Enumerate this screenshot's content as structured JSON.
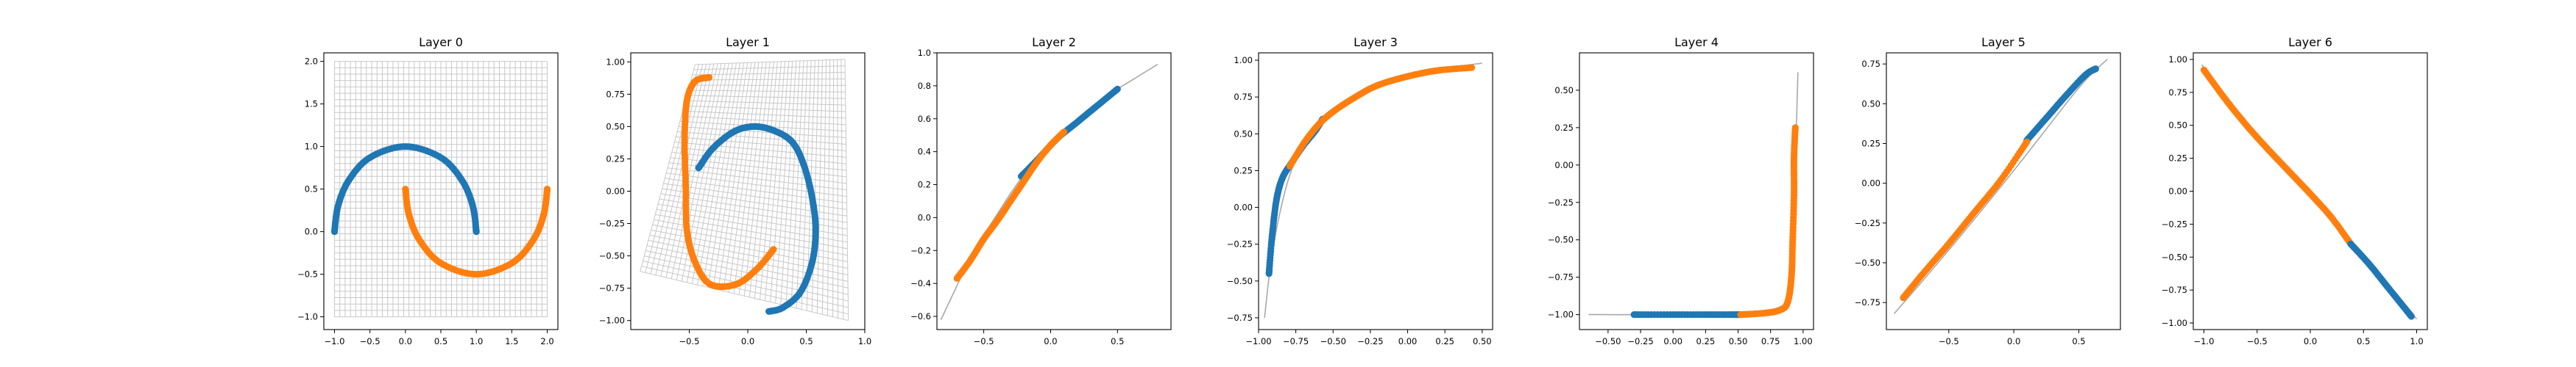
{
  "colors": {
    "blue": "#1f77b4",
    "orange": "#ff7f0e",
    "grid": "#c8c8c8",
    "line": "#a8a8a8"
  },
  "chart_data": [
    {
      "type": "scatter",
      "title": "Layer 0",
      "xlim": [
        -1.15,
        2.15
      ],
      "ylim": [
        -1.15,
        2.1
      ],
      "xticks": [
        -1.0,
        -0.5,
        0.0,
        0.5,
        1.0,
        1.5,
        2.0
      ],
      "yticks": [
        -1.0,
        -0.5,
        0.0,
        0.5,
        1.0,
        1.5,
        2.0
      ],
      "xticklabels": [
        "−1.0",
        "−0.5",
        "0.0",
        "0.5",
        "1.0",
        "1.5",
        "2.0"
      ],
      "yticklabels": [
        "−1.0",
        "−0.5",
        "0.0",
        "0.5",
        "1.0",
        "1.5",
        "2.0"
      ],
      "grid_mesh": {
        "xmin": -1.0,
        "xmax": 2.0,
        "ymin": -1.0,
        "ymax": 2.0,
        "lines": 40
      },
      "series": [
        {
          "color": "blue",
          "points": [
            [
              -1.0,
              0.0
            ],
            [
              -0.95,
              0.3
            ],
            [
              -0.8,
              0.6
            ],
            [
              -0.5,
              0.87
            ],
            [
              0.0,
              1.0
            ],
            [
              0.5,
              0.87
            ],
            [
              0.8,
              0.6
            ],
            [
              0.95,
              0.3
            ],
            [
              1.0,
              0.0
            ]
          ]
        },
        {
          "color": "orange",
          "points": [
            [
              0.0,
              0.5
            ],
            [
              0.05,
              0.2
            ],
            [
              0.2,
              -0.1
            ],
            [
              0.5,
              -0.37
            ],
            [
              1.0,
              -0.5
            ],
            [
              1.5,
              -0.37
            ],
            [
              1.8,
              -0.1
            ],
            [
              1.95,
              0.2
            ],
            [
              2.0,
              0.5
            ]
          ]
        }
      ]
    },
    {
      "type": "scatter",
      "title": "Layer 1",
      "xlim": [
        -1.0,
        1.0
      ],
      "ylim": [
        -1.07,
        1.07
      ],
      "xticks": [
        -0.5,
        0.0,
        0.5,
        1.0
      ],
      "yticks": [
        -1.0,
        -0.75,
        -0.5,
        -0.25,
        0.0,
        0.25,
        0.5,
        0.75,
        1.0
      ],
      "xticklabels": [
        "−0.5",
        "0.0",
        "0.5",
        "1.0"
      ],
      "yticklabels": [
        "−1.00",
        "−0.75",
        "−0.50",
        "−0.25",
        "0.00",
        "0.25",
        "0.50",
        "0.75",
        "1.00"
      ],
      "warp_mesh": {
        "corners": [
          [
            -0.92,
            -0.62
          ],
          [
            0.86,
            -1.0
          ],
          [
            0.83,
            1.02
          ],
          [
            -0.45,
            0.98
          ]
        ],
        "lines": 40
      },
      "series": [
        {
          "color": "blue",
          "points": [
            [
              -0.42,
              0.18
            ],
            [
              -0.3,
              0.33
            ],
            [
              -0.12,
              0.46
            ],
            [
              0.05,
              0.5
            ],
            [
              0.22,
              0.47
            ],
            [
              0.38,
              0.38
            ],
            [
              0.48,
              0.2
            ],
            [
              0.55,
              -0.05
            ],
            [
              0.58,
              -0.3
            ],
            [
              0.55,
              -0.55
            ],
            [
              0.45,
              -0.78
            ],
            [
              0.3,
              -0.9
            ],
            [
              0.18,
              -0.93
            ]
          ]
        },
        {
          "color": "orange",
          "points": [
            [
              -0.33,
              0.88
            ],
            [
              -0.45,
              0.85
            ],
            [
              -0.52,
              0.7
            ],
            [
              -0.54,
              0.4
            ],
            [
              -0.53,
              0.05
            ],
            [
              -0.52,
              -0.3
            ],
            [
              -0.45,
              -0.55
            ],
            [
              -0.32,
              -0.72
            ],
            [
              -0.1,
              -0.72
            ],
            [
              0.08,
              -0.6
            ],
            [
              0.22,
              -0.45
            ]
          ]
        }
      ]
    },
    {
      "type": "line",
      "title": "Layer 2",
      "xlim": [
        -0.85,
        0.9
      ],
      "ylim": [
        -0.68,
        1.0
      ],
      "xticks": [
        -0.5,
        0.0,
        0.5
      ],
      "yticks": [
        -0.6,
        -0.4,
        -0.2,
        0.0,
        0.2,
        0.4,
        0.6,
        0.8,
        1.0
      ],
      "xticklabels": [
        "−0.5",
        "0.0",
        "0.5"
      ],
      "yticklabels": [
        "−0.6",
        "−0.4",
        "−0.2",
        "0.0",
        "0.2",
        "0.4",
        "0.6",
        "0.8",
        "1.0"
      ],
      "line": [
        [
          -0.82,
          -0.62
        ],
        [
          -0.6,
          -0.25
        ],
        [
          -0.4,
          0.02
        ],
        [
          -0.2,
          0.26
        ],
        [
          0.0,
          0.44
        ],
        [
          0.2,
          0.6
        ],
        [
          0.4,
          0.73
        ],
        [
          0.6,
          0.83
        ],
        [
          0.8,
          0.93
        ]
      ],
      "series": [
        {
          "color": "blue",
          "points": [
            [
              -0.22,
              0.25
            ],
            [
              -0.1,
              0.35
            ],
            [
              0.05,
              0.48
            ],
            [
              0.2,
              0.58
            ],
            [
              0.35,
              0.68
            ],
            [
              0.5,
              0.78
            ]
          ]
        },
        {
          "color": "orange",
          "points": [
            [
              -0.7,
              -0.37
            ],
            [
              -0.6,
              -0.26
            ],
            [
              -0.5,
              -0.13
            ],
            [
              -0.4,
              -0.02
            ],
            [
              -0.3,
              0.1
            ],
            [
              -0.2,
              0.22
            ],
            [
              -0.1,
              0.34
            ],
            [
              0.0,
              0.44
            ],
            [
              0.1,
              0.52
            ]
          ]
        }
      ]
    },
    {
      "type": "line",
      "title": "Layer 3",
      "xlim": [
        -1.0,
        0.57
      ],
      "ylim": [
        -0.83,
        1.05
      ],
      "xticks": [
        -1.0,
        -0.75,
        -0.5,
        -0.25,
        0.0,
        0.25,
        0.5
      ],
      "yticks": [
        -0.75,
        -0.5,
        -0.25,
        0.0,
        0.25,
        0.5,
        0.75,
        1.0
      ],
      "xticklabels": [
        "−1.00",
        "−0.75",
        "−0.50",
        "−0.25",
        "0.00",
        "0.25",
        "0.50"
      ],
      "yticklabels": [
        "−0.75",
        "−0.50",
        "−0.25",
        "0.00",
        "0.25",
        "0.50",
        "0.75",
        "1.00"
      ],
      "line": [
        [
          -0.96,
          -0.75
        ],
        [
          -0.92,
          -0.4
        ],
        [
          -0.86,
          -0.05
        ],
        [
          -0.78,
          0.25
        ],
        [
          -0.68,
          0.45
        ],
        [
          -0.55,
          0.62
        ],
        [
          -0.4,
          0.74
        ],
        [
          -0.2,
          0.84
        ],
        [
          0.0,
          0.9
        ],
        [
          0.2,
          0.94
        ],
        [
          0.5,
          0.98
        ]
      ],
      "series": [
        {
          "color": "blue",
          "points": [
            [
              -0.93,
              -0.45
            ],
            [
              -0.91,
              -0.2
            ],
            [
              -0.88,
              0.05
            ],
            [
              -0.84,
              0.2
            ],
            [
              -0.78,
              0.3
            ],
            [
              -0.7,
              0.42
            ],
            [
              -0.62,
              0.52
            ],
            [
              -0.57,
              0.6
            ]
          ]
        },
        {
          "color": "orange",
          "points": [
            [
              -0.79,
              0.28
            ],
            [
              -0.7,
              0.43
            ],
            [
              -0.6,
              0.56
            ],
            [
              -0.5,
              0.65
            ],
            [
              -0.35,
              0.75
            ],
            [
              -0.2,
              0.83
            ],
            [
              0.0,
              0.89
            ],
            [
              0.2,
              0.93
            ],
            [
              0.43,
              0.95
            ]
          ]
        }
      ]
    },
    {
      "type": "line",
      "title": "Layer 4",
      "xlim": [
        -0.72,
        1.08
      ],
      "ylim": [
        -1.1,
        0.75
      ],
      "xticks": [
        -0.5,
        -0.25,
        0.0,
        0.25,
        0.5,
        0.75,
        1.0
      ],
      "yticks": [
        -1.0,
        -0.75,
        -0.5,
        -0.25,
        0.0,
        0.25,
        0.5
      ],
      "xticklabels": [
        "−0.50",
        "−0.25",
        "0.00",
        "0.25",
        "0.50",
        "0.75",
        "1.00"
      ],
      "yticklabels": [
        "−1.00",
        "−0.75",
        "−0.50",
        "−0.25",
        "0.00",
        "0.25",
        "0.50"
      ],
      "line": [
        [
          -0.65,
          -1.0
        ],
        [
          0.5,
          -1.0
        ],
        [
          0.75,
          -0.99
        ],
        [
          0.85,
          -0.97
        ],
        [
          0.9,
          -0.9
        ],
        [
          0.93,
          -0.6
        ],
        [
          0.94,
          -0.1
        ],
        [
          0.95,
          0.3
        ],
        [
          0.96,
          0.62
        ]
      ],
      "series": [
        {
          "color": "blue",
          "points": [
            [
              -0.3,
              -1.0
            ],
            [
              0.0,
              -1.0
            ],
            [
              0.3,
              -1.0
            ],
            [
              0.52,
              -1.0
            ]
          ]
        },
        {
          "color": "orange",
          "points": [
            [
              0.52,
              -1.0
            ],
            [
              0.7,
              -0.99
            ],
            [
              0.82,
              -0.97
            ],
            [
              0.88,
              -0.92
            ],
            [
              0.91,
              -0.75
            ],
            [
              0.92,
              -0.5
            ],
            [
              0.93,
              -0.2
            ],
            [
              0.93,
              0.05
            ],
            [
              0.94,
              0.25
            ]
          ]
        }
      ]
    },
    {
      "type": "line",
      "title": "Layer 5",
      "xlim": [
        -0.98,
        0.82
      ],
      "ylim": [
        -0.92,
        0.82
      ],
      "xticks": [
        -0.5,
        0.0,
        0.5
      ],
      "yticks": [
        -0.75,
        -0.5,
        -0.25,
        0.0,
        0.25,
        0.5,
        0.75
      ],
      "xticklabels": [
        "−0.5",
        "0.0",
        "0.5"
      ],
      "yticklabels": [
        "−0.75",
        "−0.50",
        "−0.25",
        "0.00",
        "0.25",
        "0.50",
        "0.75"
      ],
      "line": [
        [
          -0.92,
          -0.82
        ],
        [
          -0.5,
          -0.42
        ],
        [
          0.0,
          0.08
        ],
        [
          0.5,
          0.6
        ],
        [
          0.72,
          0.78
        ]
      ],
      "series": [
        {
          "color": "blue",
          "points": [
            [
              0.1,
              0.27
            ],
            [
              0.25,
              0.41
            ],
            [
              0.4,
              0.55
            ],
            [
              0.55,
              0.68
            ],
            [
              0.63,
              0.72
            ]
          ]
        },
        {
          "color": "orange",
          "points": [
            [
              -0.85,
              -0.72
            ],
            [
              -0.7,
              -0.57
            ],
            [
              -0.5,
              -0.38
            ],
            [
              -0.3,
              -0.18
            ],
            [
              -0.1,
              0.02
            ],
            [
              0.1,
              0.26
            ]
          ]
        }
      ]
    },
    {
      "type": "line",
      "title": "Layer 6",
      "xlim": [
        -1.1,
        1.1
      ],
      "ylim": [
        -1.05,
        1.05
      ],
      "xticks": [
        -1.0,
        -0.5,
        0.0,
        0.5,
        1.0
      ],
      "yticks": [
        -1.0,
        -0.75,
        -0.5,
        -0.25,
        0.0,
        0.25,
        0.5,
        0.75,
        1.0
      ],
      "xticklabels": [
        "−1.0",
        "−0.5",
        "0.0",
        "0.5",
        "1.0"
      ],
      "yticklabels": [
        "−1.00",
        "−0.75",
        "−0.50",
        "−0.25",
        "0.00",
        "0.25",
        "0.50",
        "0.75",
        "1.00"
      ],
      "line": [
        [
          -1.02,
          0.96
        ],
        [
          -0.5,
          0.43
        ],
        [
          0.0,
          0.0
        ],
        [
          0.5,
          -0.5
        ],
        [
          1.0,
          -0.97
        ]
      ],
      "series": [
        {
          "color": "orange",
          "points": [
            [
              -1.0,
              0.92
            ],
            [
              -0.8,
              0.7
            ],
            [
              -0.6,
              0.5
            ],
            [
              -0.4,
              0.32
            ],
            [
              -0.2,
              0.15
            ],
            [
              0.0,
              -0.02
            ],
            [
              0.2,
              -0.2
            ],
            [
              0.38,
              -0.4
            ]
          ]
        },
        {
          "color": "blue",
          "points": [
            [
              0.38,
              -0.4
            ],
            [
              0.55,
              -0.55
            ],
            [
              0.7,
              -0.7
            ],
            [
              0.85,
              -0.85
            ],
            [
              0.95,
              -0.95
            ]
          ]
        }
      ]
    }
  ]
}
